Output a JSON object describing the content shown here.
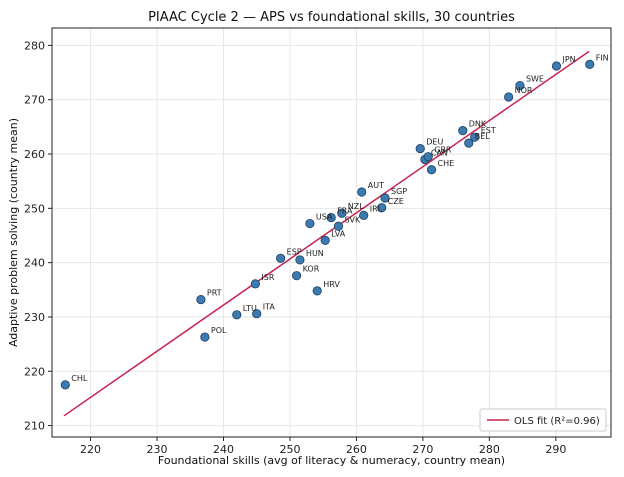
{
  "chart_data": {
    "type": "scatter",
    "title": "PIAAC Cycle 2 — APS vs foundational skills, 30 countries",
    "xlabel": "Foundational skills (avg of literacy & numeracy, country mean)",
    "ylabel": "Adaptive problem solving (country mean)",
    "xlim": [
      214.2,
      298.3
    ],
    "ylim": [
      207.9,
      283.2
    ],
    "xticks": [
      220,
      230,
      240,
      250,
      260,
      270,
      280,
      290
    ],
    "yticks": [
      210,
      220,
      230,
      240,
      250,
      260,
      270,
      280
    ],
    "grid": true,
    "legend": {
      "placement": "bottom-right",
      "label": "OLS fit (R²=0.96)"
    },
    "colors": {
      "points": "#3b7bb0",
      "point_edge": "#1f3f5f",
      "fit_line": "#c8234f",
      "grid": "#e6e6e6"
    },
    "fit_line": {
      "x": [
        216,
        295
      ],
      "y": [
        211.8,
        278.9
      ]
    },
    "points": [
      {
        "label": "CHL",
        "x": 216.2,
        "y": 217.5
      },
      {
        "label": "PRT",
        "x": 236.6,
        "y": 233.2
      },
      {
        "label": "POL",
        "x": 237.2,
        "y": 226.3
      },
      {
        "label": "LTU",
        "x": 242.0,
        "y": 230.4
      },
      {
        "label": "ITA",
        "x": 245.0,
        "y": 230.6
      },
      {
        "label": "ISR",
        "x": 244.8,
        "y": 236.1
      },
      {
        "label": "ESP",
        "x": 248.6,
        "y": 240.8
      },
      {
        "label": "HUN",
        "x": 251.5,
        "y": 240.5
      },
      {
        "label": "KOR",
        "x": 251.0,
        "y": 237.6
      },
      {
        "label": "HRV",
        "x": 254.1,
        "y": 234.8
      },
      {
        "label": "USA",
        "x": 253.0,
        "y": 247.2
      },
      {
        "label": "LVA",
        "x": 255.3,
        "y": 244.1
      },
      {
        "label": "FRA",
        "x": 256.2,
        "y": 248.3
      },
      {
        "label": "NZL",
        "x": 257.8,
        "y": 249.1
      },
      {
        "label": "SVK",
        "x": 257.3,
        "y": 246.7
      },
      {
        "label": "IRL",
        "x": 261.1,
        "y": 248.7
      },
      {
        "label": "AUT",
        "x": 260.8,
        "y": 253.0
      },
      {
        "label": "CZE",
        "x": 263.8,
        "y": 250.1
      },
      {
        "label": "SGP",
        "x": 264.3,
        "y": 251.9
      },
      {
        "label": "DEU",
        "x": 269.6,
        "y": 261.0
      },
      {
        "label": "CAN",
        "x": 270.3,
        "y": 259.0
      },
      {
        "label": "GBR",
        "x": 270.8,
        "y": 259.5
      },
      {
        "label": "CHE",
        "x": 271.3,
        "y": 257.1
      },
      {
        "label": "DNK",
        "x": 276.0,
        "y": 264.3
      },
      {
        "label": "EST",
        "x": 277.8,
        "y": 263.1
      },
      {
        "label": "BEL",
        "x": 276.9,
        "y": 262.0
      },
      {
        "label": "NOR",
        "x": 282.9,
        "y": 270.5
      },
      {
        "label": "SWE",
        "x": 284.6,
        "y": 272.6
      },
      {
        "label": "JPN",
        "x": 290.1,
        "y": 276.2
      },
      {
        "label": "FIN",
        "x": 295.1,
        "y": 276.5
      }
    ]
  }
}
